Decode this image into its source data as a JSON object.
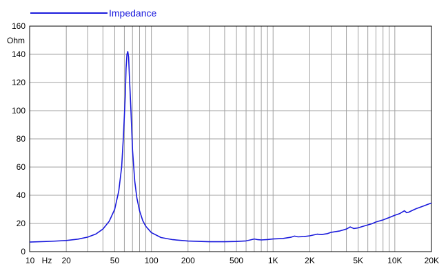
{
  "chart_data": {
    "type": "line",
    "title": "",
    "xlabel": "",
    "ylabel": "Ohm",
    "x_unit_label": "Hz",
    "x_scale": "log",
    "xlim": [
      10,
      20000
    ],
    "ylim": [
      0,
      160
    ],
    "grid": true,
    "legend_placement": "top-left",
    "colors": {
      "series": "#1a1adc",
      "grid": "#a0a0a0",
      "axis": "#000000"
    },
    "y_ticks": [
      0,
      20,
      40,
      60,
      80,
      100,
      120,
      140,
      160
    ],
    "x_tick_labels": [
      {
        "value": 10,
        "label": "10"
      },
      {
        "value": 20,
        "label": "20"
      },
      {
        "value": 50,
        "label": "50"
      },
      {
        "value": 100,
        "label": "100"
      },
      {
        "value": 200,
        "label": "200"
      },
      {
        "value": 500,
        "label": "500"
      },
      {
        "value": 1000,
        "label": "1K"
      },
      {
        "value": 2000,
        "label": "2K"
      },
      {
        "value": 5000,
        "label": "5K"
      },
      {
        "value": 10000,
        "label": "10K"
      },
      {
        "value": 20000,
        "label": "20K"
      }
    ],
    "series": [
      {
        "name": "Impedance",
        "x": [
          10,
          15,
          20,
          25,
          30,
          35,
          40,
          45,
          50,
          54,
          57,
          59,
          61,
          62,
          63,
          64,
          65,
          66,
          68,
          70,
          73,
          76,
          80,
          85,
          90,
          100,
          120,
          150,
          200,
          300,
          400,
          500,
          600,
          650,
          700,
          750,
          800,
          900,
          1000,
          1200,
          1400,
          1500,
          1600,
          1800,
          2000,
          2300,
          2500,
          2800,
          3000,
          3500,
          4000,
          4300,
          4600,
          5000,
          5500,
          6000,
          6500,
          7000,
          8000,
          9000,
          10000,
          11000,
          12000,
          12500,
          13000,
          14000,
          15000,
          17000,
          20000
        ],
        "values": [
          6.8,
          7.3,
          7.9,
          8.9,
          10.3,
          12.5,
          16,
          21.5,
          30,
          43,
          60,
          82,
          110,
          130,
          140,
          142,
          138,
          125,
          100,
          72,
          50,
          38,
          29,
          22,
          18,
          13.5,
          10,
          8.5,
          7.5,
          7.0,
          7.0,
          7.2,
          7.6,
          8.3,
          9.0,
          8.5,
          8.3,
          8.6,
          9.0,
          9.3,
          10.2,
          11.0,
          10.5,
          10.7,
          11.2,
          12.4,
          12.1,
          12.8,
          13.7,
          14.6,
          16.0,
          17.5,
          16.4,
          16.9,
          18.0,
          19.0,
          19.8,
          21.0,
          22.5,
          24.2,
          25.8,
          27.0,
          29.0,
          27.6,
          28.0,
          29.3,
          30.5,
          32.2,
          34.5
        ]
      }
    ]
  }
}
